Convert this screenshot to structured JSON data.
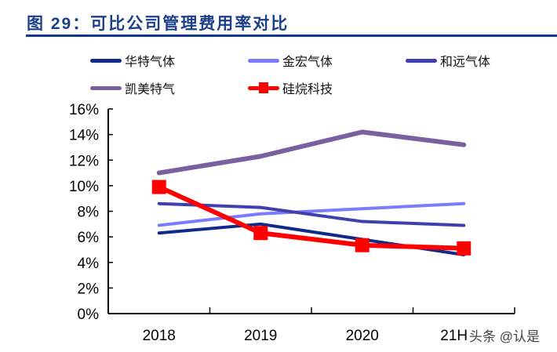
{
  "chart_data": {
    "type": "line",
    "title": "图 29：可比公司管理费用率对比",
    "categories": [
      "2018",
      "2019",
      "2020",
      "21H"
    ],
    "ylim": [
      0,
      16
    ],
    "yticks": [
      "0%",
      "2%",
      "4%",
      "6%",
      "8%",
      "10%",
      "12%",
      "14%",
      "16%"
    ],
    "grid": false,
    "legend": "top",
    "series": [
      {
        "name": "华特气体",
        "color": "#102a8c",
        "values": [
          6.3,
          7.0,
          5.8,
          4.6
        ],
        "marker": false
      },
      {
        "name": "金宏气体",
        "color": "#7b7bff",
        "values": [
          6.9,
          7.8,
          8.2,
          8.6
        ],
        "marker": false
      },
      {
        "name": "和远气体",
        "color": "#3f3faf",
        "values": [
          8.6,
          8.3,
          7.2,
          6.9
        ],
        "marker": false
      },
      {
        "name": "凯美特气",
        "color": "#7b60a0",
        "values": [
          11.0,
          12.3,
          14.2,
          13.2
        ],
        "marker": false
      },
      {
        "name": "硅烷科技",
        "color": "#ff0000",
        "values": [
          9.9,
          6.3,
          5.35,
          5.1
        ],
        "marker": true
      }
    ]
  },
  "watermark": "头条 @认是"
}
